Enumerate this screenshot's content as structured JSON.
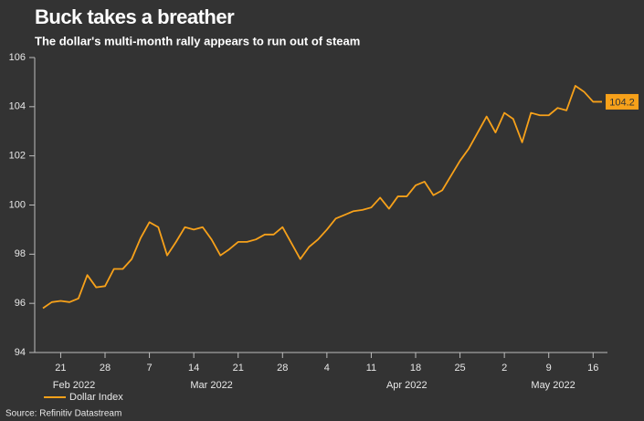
{
  "chart_data": {
    "type": "line",
    "title": "Buck takes a breather",
    "subtitle": "The dollar's multi-month rally appears to run out of steam",
    "source": "Source: Refinitiv Datastream",
    "x": [
      "2022-02-17",
      "2022-02-18",
      "2022-02-21",
      "2022-02-22",
      "2022-02-23",
      "2022-02-24",
      "2022-02-25",
      "2022-02-28",
      "2022-03-01",
      "2022-03-02",
      "2022-03-03",
      "2022-03-04",
      "2022-03-07",
      "2022-03-08",
      "2022-03-09",
      "2022-03-10",
      "2022-03-11",
      "2022-03-14",
      "2022-03-15",
      "2022-03-16",
      "2022-03-17",
      "2022-03-18",
      "2022-03-21",
      "2022-03-22",
      "2022-03-23",
      "2022-03-24",
      "2022-03-25",
      "2022-03-28",
      "2022-03-29",
      "2022-03-30",
      "2022-03-31",
      "2022-04-01",
      "2022-04-04",
      "2022-04-05",
      "2022-04-06",
      "2022-04-07",
      "2022-04-08",
      "2022-04-11",
      "2022-04-12",
      "2022-04-13",
      "2022-04-14",
      "2022-04-15",
      "2022-04-18",
      "2022-04-19",
      "2022-04-20",
      "2022-04-21",
      "2022-04-22",
      "2022-04-25",
      "2022-04-26",
      "2022-04-27",
      "2022-04-28",
      "2022-04-29",
      "2022-05-02",
      "2022-05-03",
      "2022-05-04",
      "2022-05-05",
      "2022-05-06",
      "2022-05-09",
      "2022-05-10",
      "2022-05-11",
      "2022-05-12",
      "2022-05-13",
      "2022-05-16",
      "2022-05-17"
    ],
    "series": [
      {
        "name": "Dollar Index",
        "color": "#f7a11a",
        "values": [
          95.8,
          96.05,
          96.1,
          96.05,
          96.2,
          97.15,
          96.65,
          96.7,
          97.4,
          97.4,
          97.8,
          98.65,
          99.3,
          99.1,
          97.95,
          98.5,
          99.1,
          99.0,
          99.1,
          98.6,
          97.95,
          98.2,
          98.5,
          98.5,
          98.6,
          98.8,
          98.8,
          99.1,
          98.45,
          97.8,
          98.3,
          98.6,
          99.0,
          99.45,
          99.6,
          99.75,
          99.8,
          99.9,
          100.3,
          99.85,
          100.35,
          100.35,
          100.8,
          100.95,
          100.4,
          100.6,
          101.2,
          101.8,
          102.3,
          102.95,
          103.6,
          102.95,
          103.75,
          103.5,
          102.55,
          103.75,
          103.65,
          103.65,
          103.95,
          103.85,
          104.85,
          104.6,
          104.2,
          104.2
        ]
      }
    ],
    "xticks": [
      {
        "value": "2022-02-21",
        "label": "21"
      },
      {
        "value": "2022-02-28",
        "label": "28"
      },
      {
        "value": "2022-03-07",
        "label": "7"
      },
      {
        "value": "2022-03-14",
        "label": "14"
      },
      {
        "value": "2022-03-21",
        "label": "21"
      },
      {
        "value": "2022-03-28",
        "label": "28"
      },
      {
        "value": "2022-04-04",
        "label": "4"
      },
      {
        "value": "2022-04-11",
        "label": "11"
      },
      {
        "value": "2022-04-18",
        "label": "18"
      },
      {
        "value": "2022-04-25",
        "label": "25"
      },
      {
        "value": "2022-05-02",
        "label": "2"
      },
      {
        "value": "2022-05-09",
        "label": "9"
      },
      {
        "value": "2022-05-16",
        "label": "16"
      }
    ],
    "month_labels": [
      "Feb 2022",
      "Mar 2022",
      "Apr 2022",
      "May 2022"
    ],
    "ylim": [
      94,
      106
    ],
    "yticks": [
      94,
      96,
      98,
      100,
      102,
      104,
      106
    ],
    "grid": false
  }
}
